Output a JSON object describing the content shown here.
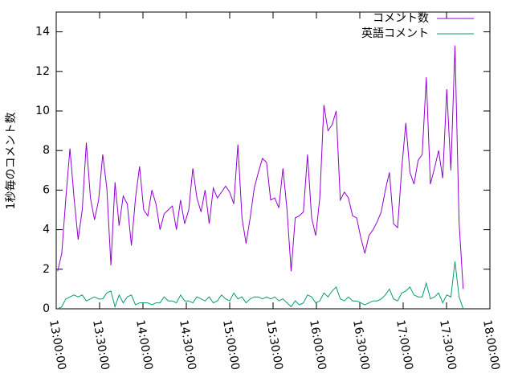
{
  "chart_data": {
    "type": "line",
    "ylabel": "1秒毎のコメント数",
    "x": [
      "13:01:00",
      "13:03:50",
      "13:06:40",
      "13:09:30",
      "13:12:20",
      "13:15:10",
      "13:18:00",
      "13:20:50",
      "13:23:40",
      "13:26:30",
      "13:29:20",
      "13:32:10",
      "13:35:00",
      "13:37:50",
      "13:40:40",
      "13:43:30",
      "13:46:20",
      "13:49:10",
      "13:52:00",
      "13:54:50",
      "13:57:40",
      "14:00:30",
      "14:03:20",
      "14:06:10",
      "14:09:00",
      "14:11:50",
      "14:14:40",
      "14:17:30",
      "14:20:20",
      "14:23:10",
      "14:26:00",
      "14:28:50",
      "14:31:40",
      "14:34:30",
      "14:37:20",
      "14:40:10",
      "14:43:00",
      "14:45:50",
      "14:48:40",
      "14:51:30",
      "14:54:20",
      "14:57:10",
      "15:00:00",
      "15:02:50",
      "15:05:40",
      "15:08:30",
      "15:11:20",
      "15:14:10",
      "15:17:00",
      "15:19:50",
      "15:22:40",
      "15:25:30",
      "15:28:20",
      "15:31:10",
      "15:34:00",
      "15:36:50",
      "15:39:40",
      "15:42:30",
      "15:45:20",
      "15:48:10",
      "15:51:00",
      "15:53:50",
      "15:56:40",
      "15:59:30",
      "16:02:20",
      "16:05:10",
      "16:08:00",
      "16:10:50",
      "16:13:40",
      "16:16:30",
      "16:19:20",
      "16:22:10",
      "16:25:00",
      "16:27:50",
      "16:30:40",
      "16:33:30",
      "16:36:20",
      "16:39:10",
      "16:42:00",
      "16:44:50",
      "16:47:40",
      "16:50:30",
      "16:53:20",
      "16:56:10",
      "16:59:00",
      "17:01:50",
      "17:04:40",
      "17:07:30",
      "17:10:20",
      "17:13:10",
      "17:16:00",
      "17:18:50",
      "17:21:40",
      "17:24:30",
      "17:27:20",
      "17:30:10",
      "17:33:00",
      "17:35:50",
      "17:38:40",
      "17:41:30"
    ],
    "series": [
      {
        "name": "コメント数",
        "color": "#9400d3",
        "values": [
          1.9,
          2.8,
          5.6,
          8.1,
          5.6,
          3.5,
          5.0,
          8.4,
          5.6,
          4.5,
          5.5,
          7.8,
          6.1,
          2.2,
          6.4,
          4.2,
          5.7,
          5.3,
          3.2,
          5.6,
          7.2,
          5.0,
          4.7,
          6.0,
          5.3,
          4.0,
          4.8,
          5.0,
          5.2,
          4.0,
          5.5,
          4.3,
          5.0,
          7.1,
          5.6,
          4.9,
          6.0,
          4.3,
          6.1,
          5.6,
          5.9,
          6.2,
          5.9,
          5.3,
          8.3,
          4.6,
          3.3,
          4.6,
          6.1,
          6.9,
          7.6,
          7.4,
          5.5,
          5.6,
          5.1,
          7.1,
          5.0,
          1.9,
          4.6,
          4.7,
          4.9,
          7.8,
          4.6,
          3.7,
          5.6,
          10.3,
          9.0,
          9.3,
          10.0,
          5.5,
          5.9,
          5.6,
          4.7,
          4.6,
          3.6,
          2.8,
          3.7,
          4.0,
          4.4,
          4.9,
          6.0,
          6.9,
          4.3,
          4.1,
          7.1,
          9.4,
          6.9,
          6.3,
          7.5,
          7.8,
          11.7,
          6.3,
          7.1,
          8.0,
          6.6,
          11.1,
          7.0,
          13.3,
          4.4,
          1.0
        ]
      },
      {
        "name": "英語コメント",
        "color": "#009e73",
        "values": [
          0,
          0.1,
          0.5,
          0.6,
          0.7,
          0.6,
          0.7,
          0.4,
          0.5,
          0.6,
          0.5,
          0.5,
          0.8,
          0.9,
          0.1,
          0.7,
          0.3,
          0.6,
          0.7,
          0.2,
          0.3,
          0.3,
          0.3,
          0.2,
          0.3,
          0.3,
          0.6,
          0.4,
          0.4,
          0.3,
          0.7,
          0.4,
          0.4,
          0.3,
          0.6,
          0.5,
          0.4,
          0.6,
          0.3,
          0.4,
          0.7,
          0.5,
          0.4,
          0.8,
          0.5,
          0.6,
          0.3,
          0.5,
          0.6,
          0.6,
          0.5,
          0.6,
          0.5,
          0.6,
          0.4,
          0.5,
          0.3,
          0.1,
          0.4,
          0.2,
          0.3,
          0.7,
          0.6,
          0.3,
          0.4,
          0.8,
          0.6,
          0.9,
          1.1,
          0.5,
          0.4,
          0.6,
          0.4,
          0.4,
          0.3,
          0.2,
          0.3,
          0.4,
          0.4,
          0.5,
          0.7,
          1.0,
          0.5,
          0.4,
          0.8,
          0.9,
          1.1,
          0.7,
          0.6,
          0.6,
          1.3,
          0.5,
          0.6,
          0.8,
          0.3,
          0.7,
          0.6,
          2.4,
          0.6,
          0
        ]
      }
    ],
    "xlim": [
      "13:00:00",
      "18:00:00"
    ],
    "xticks": [
      "13:00:00",
      "13:30:00",
      "14:00:00",
      "14:30:00",
      "15:00:00",
      "15:30:00",
      "16:00:00",
      "16:30:00",
      "17:00:00",
      "17:30:00",
      "18:00:00"
    ],
    "ylim": [
      0,
      15
    ],
    "yticks": [
      0,
      2,
      4,
      6,
      8,
      10,
      12,
      14
    ],
    "legend": "top right"
  }
}
